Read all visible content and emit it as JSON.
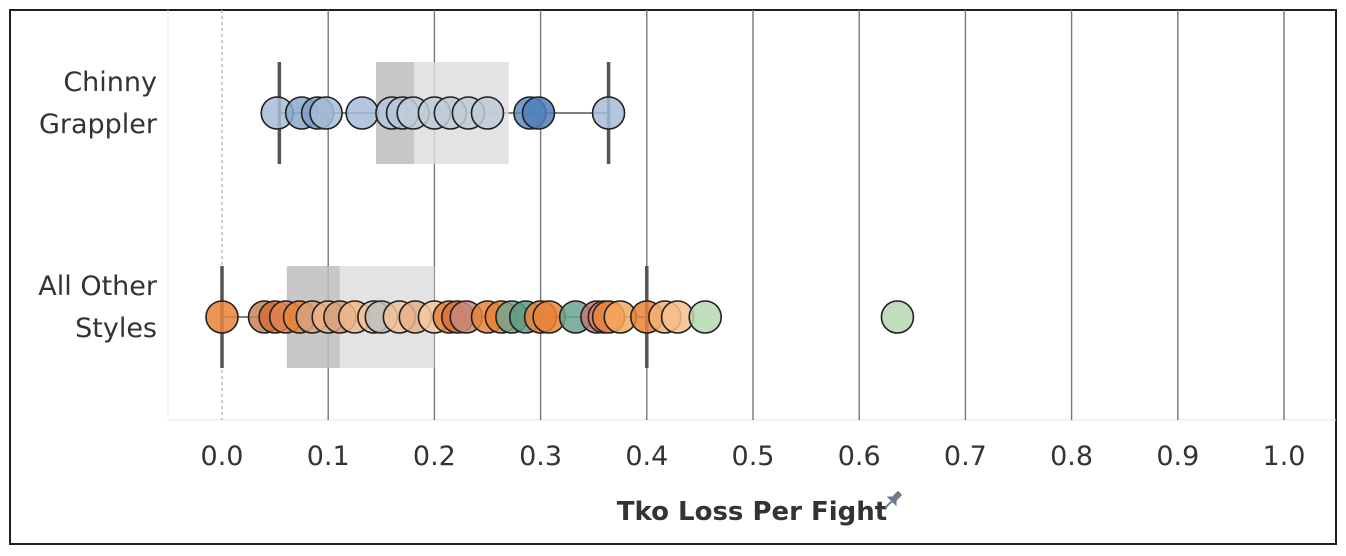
{
  "chart_data": {
    "type": "scatter",
    "xlabel": "Tko Loss Per Fight",
    "axis_pin_icon": "pin-icon",
    "xlim": [
      -0.05,
      1.05
    ],
    "x_ticks": [
      0.0,
      0.1,
      0.2,
      0.3,
      0.4,
      0.5,
      0.6,
      0.7,
      0.8,
      0.9,
      1.0
    ],
    "x_tick_labels": [
      "0.0",
      "0.1",
      "0.2",
      "0.3",
      "0.4",
      "0.5",
      "0.6",
      "0.7",
      "0.8",
      "0.9",
      "1.0"
    ],
    "grid": "vertical",
    "categories": [
      {
        "label_lines": [
          "Chinny",
          "Grappler"
        ],
        "whisker_low": 0.054,
        "q1": 0.145,
        "median": 0.181,
        "q3": 0.27,
        "whisker_high": 0.364,
        "points": [
          {
            "x": 0.052,
            "color": "#a6bcd8"
          },
          {
            "x": 0.075,
            "color": "#8aa8cc"
          },
          {
            "x": 0.09,
            "color": "#7fa0c8"
          },
          {
            "x": 0.098,
            "color": "#a6bcd8"
          },
          {
            "x": 0.132,
            "color": "#a6bcd8"
          },
          {
            "x": 0.16,
            "color": "#b5c6db"
          },
          {
            "x": 0.17,
            "color": "#b5c6db"
          },
          {
            "x": 0.18,
            "color": "#c0cbd8"
          },
          {
            "x": 0.2,
            "color": "#c0cbd8"
          },
          {
            "x": 0.215,
            "color": "#c0cbd8"
          },
          {
            "x": 0.232,
            "color": "#c0cbd8"
          },
          {
            "x": 0.25,
            "color": "#c0cbd8"
          },
          {
            "x": 0.29,
            "color": "#5f8dc0"
          },
          {
            "x": 0.298,
            "color": "#4f7fb8"
          },
          {
            "x": 0.364,
            "color": "#a6bcd8"
          }
        ]
      },
      {
        "label_lines": [
          "All Other",
          "Styles"
        ],
        "whisker_low": 0.0,
        "q1": 0.061,
        "median": 0.111,
        "q3": 0.2,
        "whisker_high": 0.4,
        "points": [
          {
            "x": 0.0,
            "color": "#e8843a"
          },
          {
            "x": 0.04,
            "color": "#c9825a"
          },
          {
            "x": 0.05,
            "color": "#d4703a"
          },
          {
            "x": 0.06,
            "color": "#e08050"
          },
          {
            "x": 0.073,
            "color": "#e8843a"
          },
          {
            "x": 0.085,
            "color": "#d9a07c"
          },
          {
            "x": 0.1,
            "color": "#ebb184"
          },
          {
            "x": 0.111,
            "color": "#d9a07c"
          },
          {
            "x": 0.125,
            "color": "#f0b88a"
          },
          {
            "x": 0.143,
            "color": "#f0c29a"
          },
          {
            "x": 0.15,
            "color": "#c0c0c0"
          },
          {
            "x": 0.167,
            "color": "#f0c29a"
          },
          {
            "x": 0.182,
            "color": "#e8b08a"
          },
          {
            "x": 0.2,
            "color": "#f4c8a0"
          },
          {
            "x": 0.214,
            "color": "#e8843a"
          },
          {
            "x": 0.222,
            "color": "#d9703a"
          },
          {
            "x": 0.23,
            "color": "#c78a78"
          },
          {
            "x": 0.25,
            "color": "#e8843a"
          },
          {
            "x": 0.263,
            "color": "#e8843a"
          },
          {
            "x": 0.273,
            "color": "#7aa58a"
          },
          {
            "x": 0.286,
            "color": "#5f9a86"
          },
          {
            "x": 0.3,
            "color": "#e8843a"
          },
          {
            "x": 0.308,
            "color": "#e8843a"
          },
          {
            "x": 0.333,
            "color": "#6aa58e"
          },
          {
            "x": 0.353,
            "color": "#c27575"
          },
          {
            "x": 0.36,
            "color": "#e88070"
          },
          {
            "x": 0.364,
            "color": "#e8843a"
          },
          {
            "x": 0.375,
            "color": "#f4a860"
          },
          {
            "x": 0.4,
            "color": "#e8843a"
          },
          {
            "x": 0.417,
            "color": "#f4b070"
          },
          {
            "x": 0.429,
            "color": "#f4c08a"
          },
          {
            "x": 0.455,
            "color": "#b5d8b0"
          },
          {
            "x": 0.636,
            "color": "#b5d8b0"
          }
        ]
      }
    ]
  }
}
